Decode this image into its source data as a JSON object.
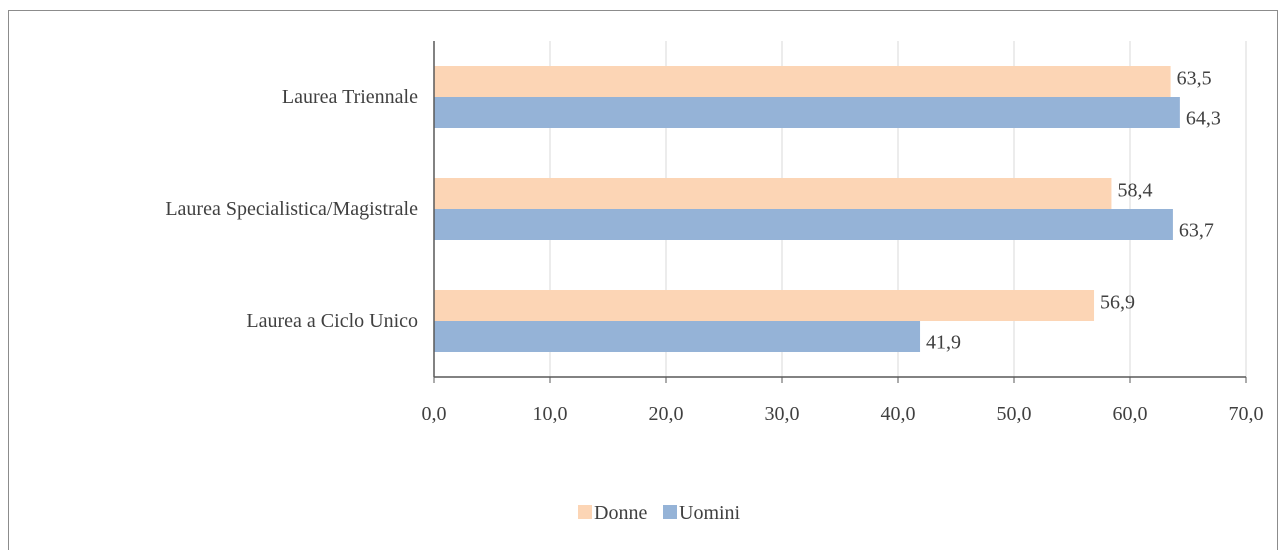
{
  "chart_data": {
    "type": "bar",
    "orientation": "horizontal",
    "categories": [
      "Laurea Triennale",
      "Laurea Specialistica/Magistrale",
      "Laurea a Ciclo Unico"
    ],
    "series": [
      {
        "name": "Donne",
        "values": [
          63.5,
          58.4,
          56.9
        ],
        "labels": [
          "63,5",
          "58,4",
          "56,9"
        ],
        "color": "#fcd5b5"
      },
      {
        "name": "Uomini",
        "values": [
          64.3,
          63.7,
          41.9
        ],
        "labels": [
          "64,3",
          "63,7",
          "41,9"
        ],
        "color": "#95b3d7"
      }
    ],
    "xlim": [
      0,
      70
    ],
    "xticks": [
      0,
      10,
      20,
      30,
      40,
      50,
      60,
      70
    ],
    "xtick_labels": [
      "0,0",
      "10,0",
      "20,0",
      "30,0",
      "40,0",
      "50,0",
      "60,0",
      "70,0"
    ],
    "grid": "vertical",
    "legend_position": "bottom",
    "title": "",
    "xlabel": "",
    "ylabel": ""
  },
  "colors": {
    "grid": "#d9d9d9",
    "axis": "#595959",
    "text": "#404040"
  }
}
